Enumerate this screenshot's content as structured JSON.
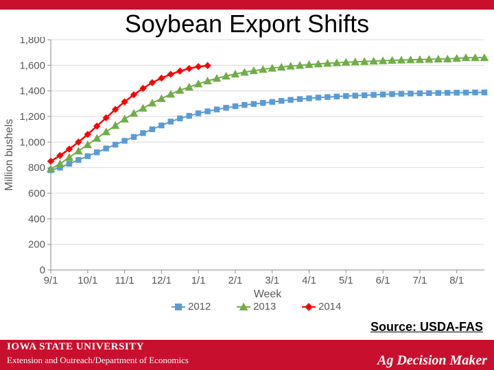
{
  "title": "Soybean Export Shifts",
  "source": "Source: USDA-FAS",
  "footer": {
    "isu_line": "IOWA STATE UNIVERSITY",
    "dept": "Extension and Outreach/Department of Economics",
    "adm": "Ag Decision Maker"
  },
  "chart": {
    "type": "line",
    "background_color": "#ffffff",
    "grid_color": "#d9d9d9",
    "axis_color": "#8a8a8a",
    "tick_font_color": "#595959",
    "y": {
      "label": "Million bushels",
      "min": 0,
      "max": 1800,
      "step": 200,
      "ticks": [
        0,
        200,
        400,
        600,
        800,
        1000,
        1200,
        1400,
        1600,
        1800
      ]
    },
    "x": {
      "label": "Week",
      "categories": [
        "9/1",
        "10/1",
        "11/1",
        "12/1",
        "1/1",
        "2/1",
        "3/1",
        "4/1",
        "5/1",
        "6/1",
        "7/1",
        "8/1"
      ],
      "n_weeks": 48
    },
    "legend": {
      "position": "bottom",
      "items": [
        {
          "label": "2012",
          "marker": "square",
          "color": "#5b9bd5"
        },
        {
          "label": "2013",
          "marker": "triangle",
          "color": "#70ad47"
        },
        {
          "label": "2014",
          "marker": "diamond",
          "color": "#ff0000"
        }
      ]
    },
    "series": [
      {
        "name": "2012",
        "marker": "square",
        "color": "#5b9bd5",
        "line_width": 2,
        "marker_size": 4.2,
        "values": [
          780,
          800,
          830,
          860,
          890,
          920,
          950,
          980,
          1010,
          1040,
          1070,
          1100,
          1130,
          1160,
          1185,
          1205,
          1225,
          1240,
          1255,
          1268,
          1280,
          1290,
          1298,
          1306,
          1314,
          1322,
          1330,
          1336,
          1342,
          1348,
          1352,
          1356,
          1360,
          1363,
          1366,
          1369,
          1372,
          1375,
          1377,
          1379,
          1381,
          1383,
          1384,
          1385,
          1386,
          1387,
          1388,
          1388
        ]
      },
      {
        "name": "2013",
        "marker": "triangle",
        "color": "#70ad47",
        "line_width": 2,
        "marker_size": 5,
        "values": [
          790,
          830,
          880,
          930,
          980,
          1030,
          1080,
          1130,
          1180,
          1225,
          1265,
          1305,
          1340,
          1375,
          1405,
          1430,
          1455,
          1478,
          1498,
          1516,
          1532,
          1546,
          1558,
          1568,
          1578,
          1586,
          1594,
          1600,
          1606,
          1611,
          1616,
          1620,
          1624,
          1627,
          1630,
          1633,
          1636,
          1639,
          1641,
          1643,
          1645,
          1647,
          1649,
          1650,
          1655,
          1660,
          1660,
          1660
        ]
      },
      {
        "name": "2014",
        "marker": "diamond",
        "color": "#ff0000",
        "line_width": 2.5,
        "marker_size": 4.5,
        "values": [
          850,
          895,
          945,
          1000,
          1060,
          1125,
          1190,
          1255,
          1315,
          1370,
          1420,
          1465,
          1500,
          1530,
          1555,
          1575,
          1590,
          1598
        ]
      }
    ]
  }
}
